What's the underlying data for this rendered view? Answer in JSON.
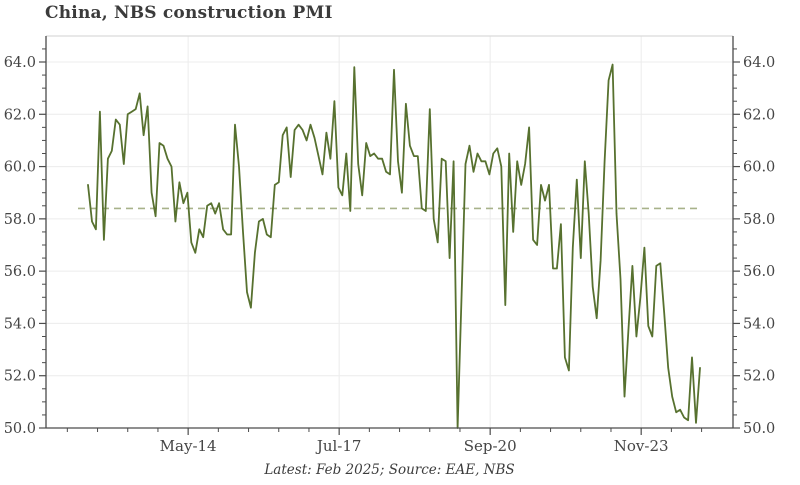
{
  "title": "China, NBS construction PMI",
  "caption": "Latest: Feb 2025; Source: EAE, NBS",
  "chart_data": {
    "type": "line",
    "title": "China, NBS construction PMI",
    "ylabel": "",
    "xlabel": "",
    "ylim": [
      50,
      64
    ],
    "grid": true,
    "legend_position": "none",
    "mean_line": 58.4,
    "y_ticks": [
      50,
      52,
      54,
      56,
      58,
      60,
      62,
      64
    ],
    "y_minor_step": 0.5,
    "x_ticks": [
      {
        "label": "May-14",
        "month_index": 25.2
      },
      {
        "label": "Jul-17",
        "month_index": 63.2
      },
      {
        "label": "Sep-20",
        "month_index": 101.2
      },
      {
        "label": "Nov-23",
        "month_index": 139.2
      }
    ],
    "series": [
      {
        "name": "NBS construction PMI",
        "values": [
          59.3,
          57.9,
          57.6,
          62.1,
          57.2,
          60.3,
          60.6,
          61.8,
          61.6,
          60.1,
          62.0,
          62.1,
          62.2,
          62.8,
          61.2,
          62.3,
          59.0,
          58.1,
          60.9,
          60.8,
          60.3,
          60.0,
          57.9,
          59.4,
          58.6,
          59.0,
          57.1,
          56.7,
          57.6,
          57.3,
          58.5,
          58.6,
          58.2,
          58.6,
          57.6,
          57.4,
          57.4,
          61.6,
          60.0,
          57.5,
          55.2,
          54.6,
          56.7,
          57.9,
          58.0,
          57.4,
          57.3,
          59.3,
          59.4,
          61.2,
          61.5,
          59.6,
          61.4,
          61.6,
          61.4,
          61.0,
          61.6,
          61.1,
          60.4,
          59.7,
          61.3,
          60.3,
          62.5,
          59.2,
          58.9,
          60.5,
          58.3,
          63.8,
          60.1,
          58.9,
          60.9,
          60.4,
          60.5,
          60.3,
          60.3,
          59.8,
          59.7,
          63.7,
          60.2,
          59.0,
          62.4,
          60.8,
          60.4,
          60.4,
          58.4,
          58.3,
          62.2,
          58.0,
          57.1,
          60.3,
          60.2,
          56.5,
          60.2,
          50.0,
          55.1,
          60.1,
          60.8,
          59.8,
          60.5,
          60.2,
          60.2,
          59.7,
          60.5,
          60.7,
          60.0,
          54.7,
          60.5,
          57.5,
          60.2,
          59.3,
          60.1,
          61.5,
          57.2,
          57.0,
          59.3,
          58.7,
          59.3,
          56.1,
          56.1,
          57.8,
          52.7,
          52.2,
          56.9,
          59.5,
          56.5,
          60.2,
          58.2,
          55.4,
          54.2,
          56.4,
          60.2,
          63.3,
          63.9,
          58.2,
          55.7,
          51.2,
          53.8,
          56.2,
          53.5,
          55.0,
          56.9,
          53.9,
          53.5,
          56.2,
          56.3,
          54.4,
          52.3,
          51.2,
          50.6,
          50.7,
          50.4,
          50.3,
          52.7,
          50.2,
          52.3
        ]
      }
    ],
    "colors": {
      "line": "#57712f",
      "mean_line": "#a8b28a",
      "grid": "#ececec",
      "spine": "#4c4c4c",
      "top_spine": "#d9d9d9",
      "text": "#454545"
    }
  }
}
